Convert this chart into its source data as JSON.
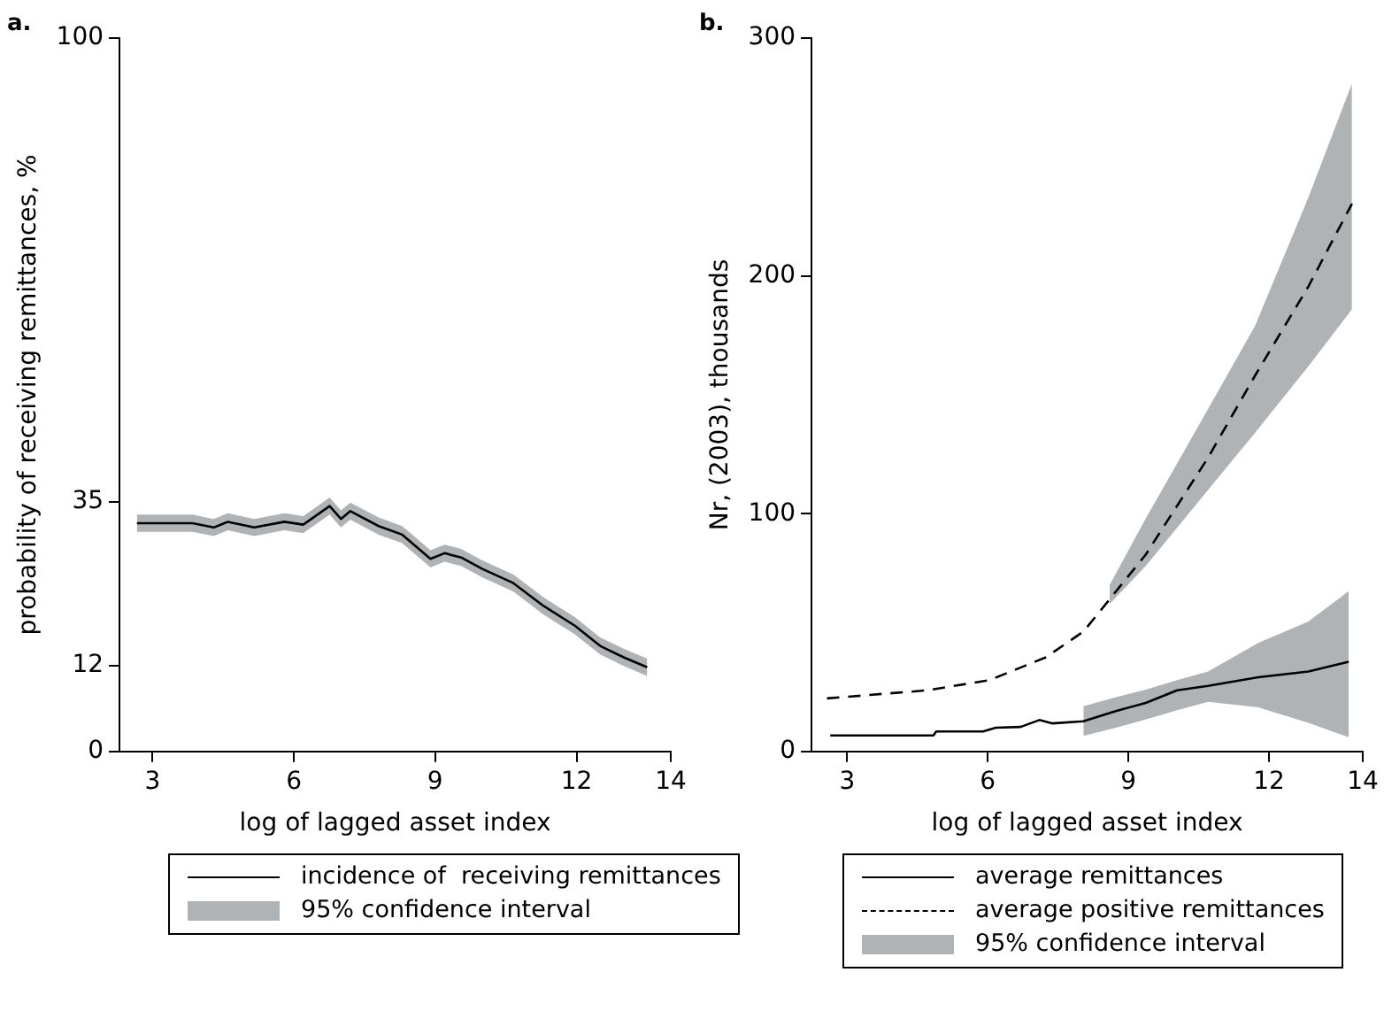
{
  "chart_data": [
    {
      "type": "line",
      "title": "a.",
      "xlabel": "log of lagged asset index",
      "ylabel": "probability of receiving remittances, %",
      "xlim": [
        2.3,
        14
      ],
      "xticks": [
        3,
        6,
        9,
        12,
        14
      ],
      "ylim": [
        0,
        100
      ],
      "yticks": [
        0,
        12,
        35,
        100
      ],
      "grid": false,
      "legend": "bottom",
      "marker": "none",
      "annotations": [
        "95% confidence interval"
      ],
      "series": [
        {
          "name": "incidence of  receiving remittances",
          "color": "#000000",
          "line_style": "solid",
          "x": [
            2.67,
            3.85,
            4.3,
            4.6,
            5.16,
            5.8,
            6.2,
            6.76,
            7.0,
            7.2,
            7.8,
            8.3,
            8.9,
            9.2,
            9.55,
            10.0,
            10.66,
            11.3,
            11.97,
            12.5,
            13.0,
            13.5
          ],
          "values": [
            32,
            32,
            31.4,
            32.2,
            31.4,
            32.2,
            31.8,
            34.4,
            32.6,
            33.7,
            31.6,
            30.4,
            27,
            27.8,
            27.2,
            25.6,
            23.6,
            20.4,
            17.6,
            14.8,
            13.2,
            11.8
          ],
          "lower": [
            30.8,
            30.8,
            30.2,
            31,
            30.2,
            31,
            30.6,
            33.2,
            31.4,
            32.5,
            30.4,
            29.2,
            25.8,
            26.6,
            26,
            24.4,
            22.4,
            19.2,
            16.4,
            13.6,
            12,
            10.6
          ],
          "upper": [
            33.2,
            33.2,
            32.6,
            33.4,
            32.6,
            33.4,
            33,
            35.6,
            33.8,
            34.9,
            32.8,
            31.6,
            28.2,
            29,
            28.4,
            26.8,
            24.8,
            21.6,
            18.8,
            16,
            14.4,
            13
          ]
        }
      ]
    },
    {
      "type": "line",
      "title": "b.",
      "xlabel": "log of lagged asset index",
      "ylabel": "Nr, (2003), thousands",
      "xlim": [
        2.24,
        14
      ],
      "xticks": [
        3,
        6,
        9,
        12,
        14
      ],
      "ylim": [
        0,
        300
      ],
      "yticks": [
        0,
        100,
        200,
        300
      ],
      "grid": false,
      "legend": "bottom",
      "marker": "none",
      "annotations": [
        "95% confidence interval"
      ],
      "series": [
        {
          "name": "average remittances",
          "color": "#000000",
          "line_style": "solid",
          "x": [
            2.64,
            4.84,
            4.9,
            5.9,
            6.17,
            6.7,
            7.1,
            7.37,
            8.04,
            8.7,
            9.37,
            10.04,
            10.7,
            11.77,
            12.84,
            13.7
          ],
          "values": [
            6.7,
            6.7,
            8.4,
            8.4,
            10,
            10.3,
            13.2,
            11.8,
            12.7,
            16.8,
            20.4,
            25.7,
            27.6,
            31.2,
            33.6,
            37.7
          ],
          "lower": [
            null,
            null,
            null,
            null,
            null,
            null,
            null,
            null,
            6.5,
            9.8,
            13.4,
            17.3,
            20.9,
            18.5,
            12,
            6
          ],
          "upper": [
            null,
            null,
            null,
            null,
            null,
            null,
            null,
            null,
            19,
            22.6,
            26,
            30,
            33.6,
            45.6,
            54.7,
            67.4
          ]
        },
        {
          "name": "average positive remittances",
          "color": "#000000",
          "line_style": "dashed",
          "x": [
            2.57,
            4.7,
            6.04,
            7.24,
            8.04,
            8.6,
            9.37,
            10.7,
            11.7,
            12.84,
            13.77
          ],
          "values": [
            22.3,
            25.7,
            30,
            39.6,
            50.4,
            64,
            82.8,
            123.6,
            158,
            195.6,
            230.4
          ],
          "lower": [
            null,
            null,
            null,
            null,
            null,
            62,
            78,
            110,
            134,
            162,
            186
          ],
          "upper": [
            null,
            null,
            null,
            null,
            null,
            70,
            98,
            144,
            179,
            233,
            281
          ]
        }
      ]
    }
  ]
}
